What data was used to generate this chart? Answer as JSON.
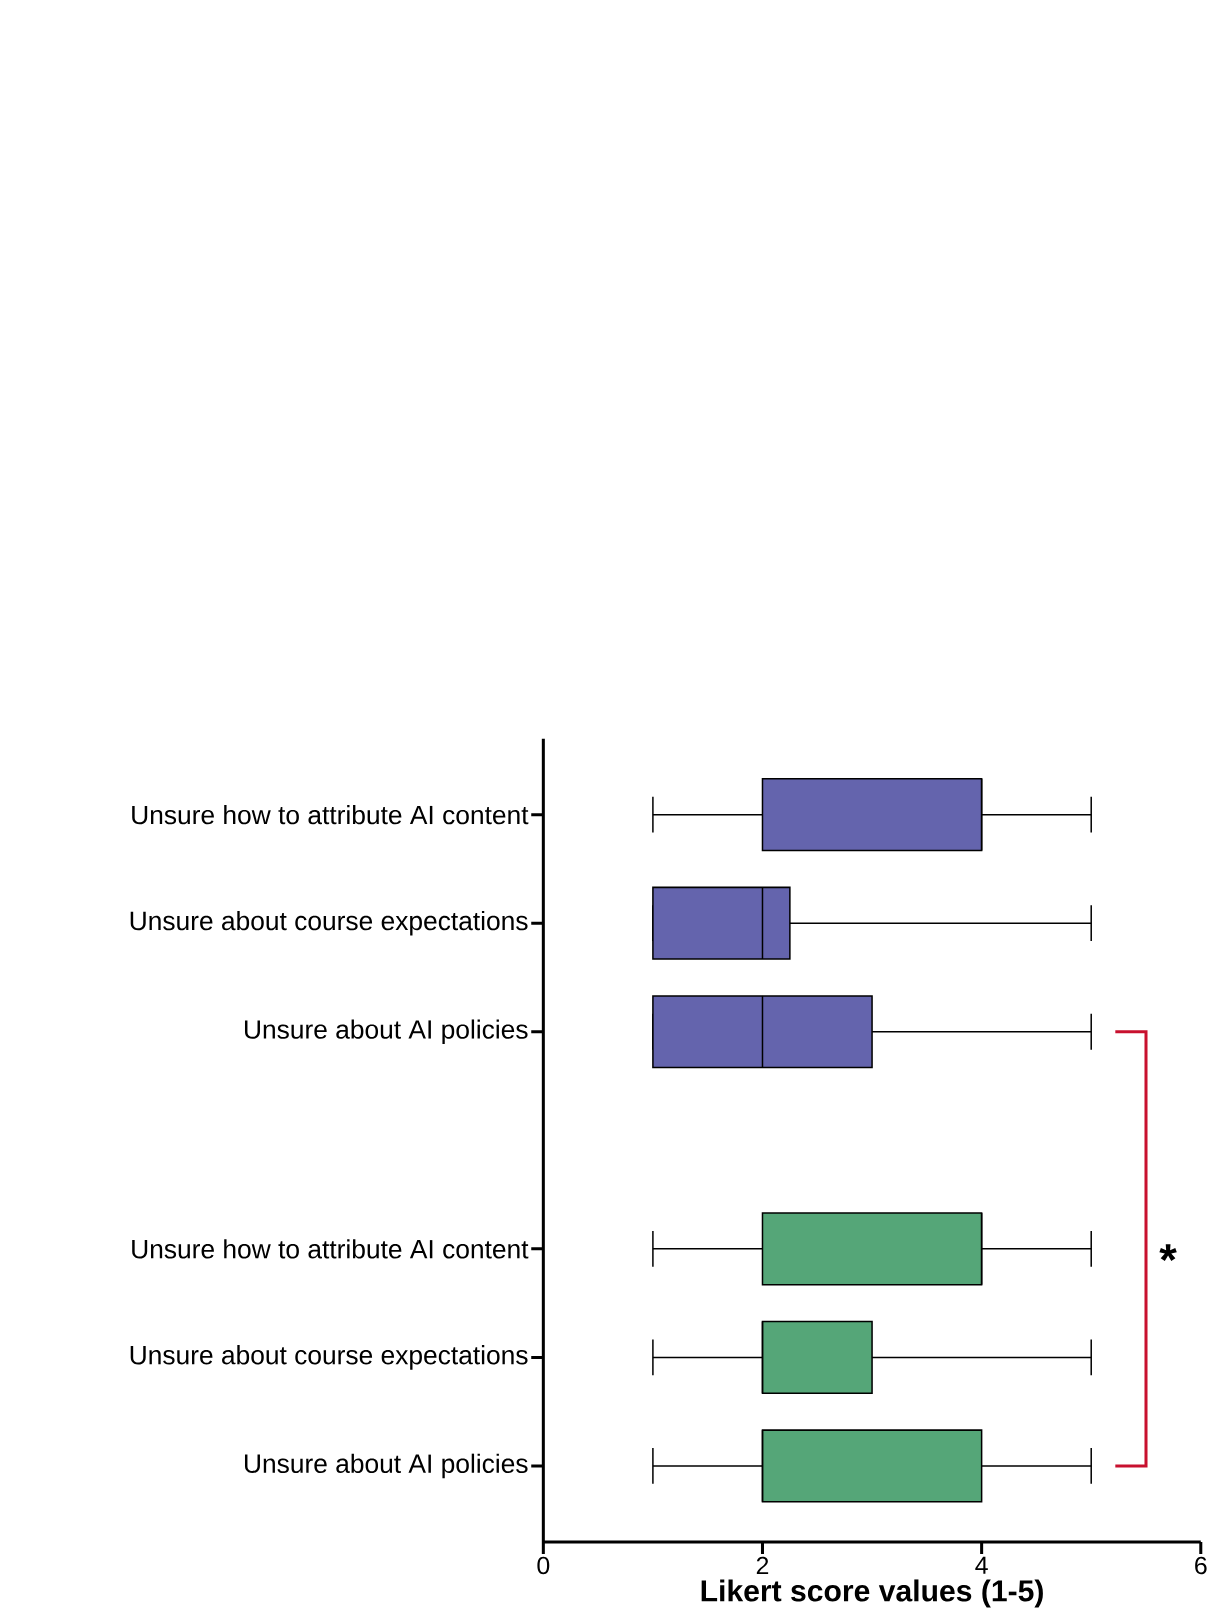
{
  "chart_data": {
    "type": "box",
    "orientation": "horizontal",
    "xlabel": "Likert score values (1-5)",
    "categories": [
      "Unsure how to attribute AI content",
      "Unsure about course expectations",
      "Unsure about AI policies",
      null,
      "Unsure how to attribute AI content",
      "Unsure about course expectations",
      "Unsure about AI policies"
    ],
    "boxes": [
      {
        "low": 1,
        "q1": 2,
        "median": 4,
        "q3": 4,
        "high": 5
      },
      {
        "low": 1,
        "q1": 1,
        "median": 2,
        "q3": 2.25,
        "high": 5
      },
      {
        "low": 1,
        "q1": 1,
        "median": 2,
        "q3": 3,
        "high": 5
      },
      null,
      {
        "low": 1,
        "q1": 2,
        "median": 4,
        "q3": 4,
        "high": 5
      },
      {
        "low": 1,
        "q1": 2,
        "median": 2,
        "q3": 3,
        "high": 5
      },
      {
        "low": 1,
        "q1": 2,
        "median": 2,
        "q3": 4,
        "high": 5
      }
    ],
    "colors": [
      "#6464ad",
      "#6464ad",
      "#6464ad",
      null,
      "#55a678",
      "#55a678",
      "#55a678"
    ],
    "xlim": [
      0,
      6
    ],
    "xticks": [
      0,
      2,
      4,
      6
    ],
    "annotations": [
      "*"
    ]
  }
}
